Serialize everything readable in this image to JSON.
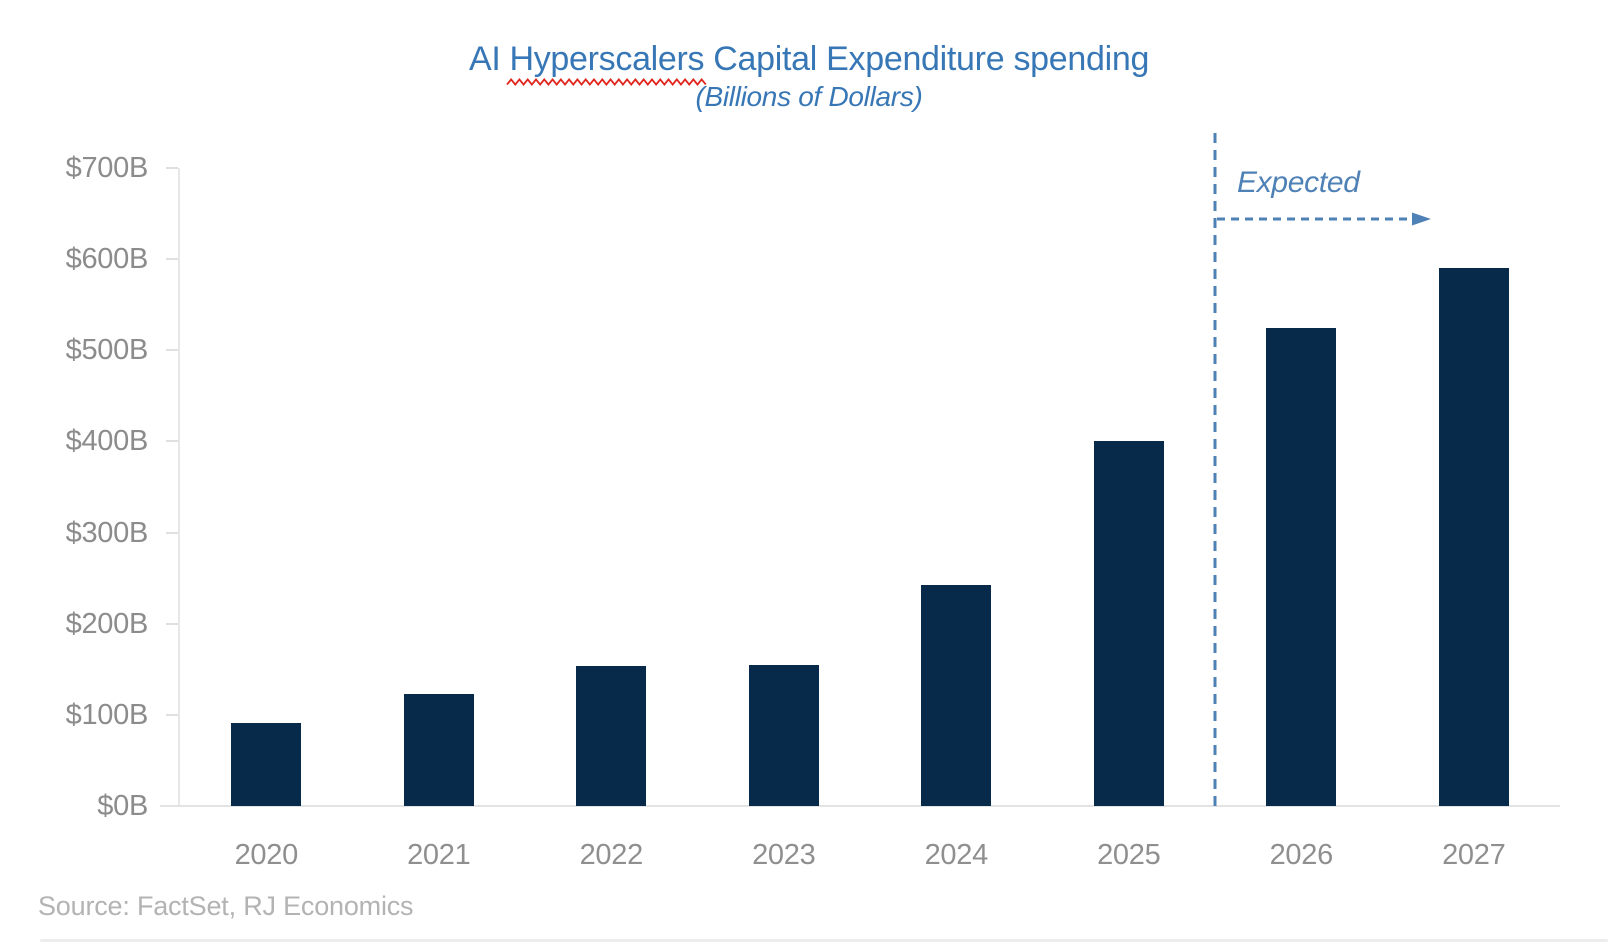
{
  "title": {
    "prefix": "AI",
    "misspelled_word": "Hyperscalers",
    "suffix": "Capital Expenditure spending",
    "full": "AI Hyperscalers Capital Expenditure spending",
    "subtitle": "(Billions of Dollars)"
  },
  "annotation": {
    "label": "Expected"
  },
  "source_note": "Source: FactSet, RJ Economics",
  "colors": {
    "title_blue": "#3877b6",
    "annotation_blue": "#4e81b6",
    "bar_navy": "#072a4a",
    "axis_label_gray": "#8c8c8c",
    "year_label_gray": "#8f8f8f",
    "source_gray": "#b3b3b3",
    "squiggle_red": "#e0261d"
  },
  "chart_data": {
    "type": "bar",
    "title": "AI Hyperscalers Capital Expenditure spending",
    "subtitle": "(Billions of Dollars)",
    "categories": [
      "2020",
      "2021",
      "2022",
      "2023",
      "2024",
      "2025",
      "2026",
      "2027"
    ],
    "values": [
      91,
      123,
      154,
      155,
      242,
      400,
      525,
      590
    ],
    "unit": "Billions of US Dollars",
    "ylim": [
      0,
      700
    ],
    "ytick_step": 100,
    "ytick_labels": [
      "$0B",
      "$100B",
      "$200B",
      "$300B",
      "$400B",
      "$500B",
      "$600B",
      "$700B"
    ],
    "grid": false,
    "legend": false,
    "annotation": {
      "label": "Expected",
      "applies_to_categories": [
        "2026",
        "2027"
      ],
      "divider_before_category": "2026"
    },
    "source": "Source: FactSet, RJ Economics"
  }
}
